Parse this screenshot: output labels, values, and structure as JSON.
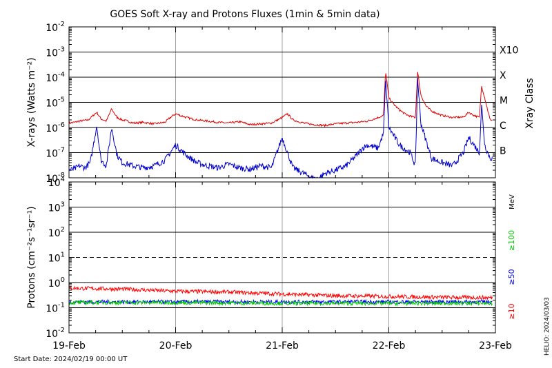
{
  "colors": {
    "xray_long": "#e00000",
    "xray_short": "#0000c8",
    "proton_10": "#ff0000",
    "proton_50": "#0000ff",
    "proton_100": "#00cc00",
    "grid": "#000000",
    "date_grid": "#a0a0a0"
  },
  "chart_data": [
    {
      "type": "line",
      "title": "GOES Soft X-ray and Protons Fluxes   (1min & 5min data)",
      "ylabel": "X-rays (Watts m⁻²)",
      "y_scale": "log",
      "ylim": [
        1e-08,
        0.01
      ],
      "y_ticks": [
        {
          "value": 1e-08,
          "base": "10",
          "exp": "-8"
        },
        {
          "value": 1e-07,
          "base": "10",
          "exp": "-7"
        },
        {
          "value": 1e-06,
          "base": "10",
          "exp": "-6"
        },
        {
          "value": 1e-05,
          "base": "10",
          "exp": "-5"
        },
        {
          "value": 0.0001,
          "base": "10",
          "exp": "-4"
        },
        {
          "value": 0.001,
          "base": "10",
          "exp": "-3"
        },
        {
          "value": 0.01,
          "base": "10",
          "exp": "-2"
        }
      ],
      "xrange": [
        "2024-02-19 00:00",
        "2024-02-23 00:00"
      ],
      "x_ticks": [
        "19-Feb",
        "20-Feb",
        "21-Feb",
        "22-Feb",
        "23-Feb"
      ],
      "right_axis_label": "Xray Class",
      "xray_classes": [
        {
          "label": "B",
          "value": 1e-07
        },
        {
          "label": "C",
          "value": 1e-06
        },
        {
          "label": "M",
          "value": 1e-05
        },
        {
          "label": "X",
          "value": 0.0001
        },
        {
          "label": "X10",
          "value": 0.001
        }
      ],
      "series": [
        {
          "color": "#e00000",
          "x_days": [
            0,
            0.05,
            0.1,
            0.18,
            0.26,
            0.3,
            0.35,
            0.4,
            0.45,
            0.5,
            0.55,
            0.6,
            0.7,
            0.8,
            0.9,
            0.95,
            1.0,
            1.1,
            1.2,
            1.3,
            1.4,
            1.5,
            1.6,
            1.7,
            1.8,
            1.9,
            2.0,
            2.05,
            2.1,
            2.2,
            2.3,
            2.4,
            2.5,
            2.6,
            2.7,
            2.8,
            2.9,
            2.95,
            2.97,
            3.0,
            3.05,
            3.1,
            3.15,
            3.2,
            3.25,
            3.27,
            3.3,
            3.35,
            3.4,
            3.5,
            3.6,
            3.7,
            3.75,
            3.8,
            3.85,
            3.87,
            3.9,
            3.95
          ],
          "values": [
            1.5e-06,
            1.6e-06,
            1.8e-06,
            2e-06,
            4e-06,
            2.2e-06,
            1.8e-06,
            5.5e-06,
            2.5e-06,
            2e-06,
            1.8e-06,
            1.5e-06,
            1.6e-06,
            1.4e-06,
            1.6e-06,
            2.5e-06,
            3.5e-06,
            2.5e-06,
            2e-06,
            1.8e-06,
            1.6e-06,
            1.5e-06,
            1.7e-06,
            1.3e-06,
            1.4e-06,
            1.5e-06,
            2.5e-06,
            3.5e-06,
            2e-06,
            1.5e-06,
            1.3e-06,
            1.2e-06,
            1.4e-06,
            1.5e-06,
            1.6e-06,
            1.8e-06,
            2.5e-06,
            3e-06,
            0.00018,
            1.5e-05,
            8e-06,
            5e-06,
            3.5e-06,
            2.8e-06,
            2.5e-06,
            0.00017,
            2e-05,
            7e-06,
            4.5e-06,
            3e-06,
            2.5e-06,
            2.6e-06,
            4e-06,
            3e-06,
            2.5e-06,
            4.5e-05,
            1.5e-05,
            2e-06
          ]
        },
        {
          "color": "#0000c8",
          "x_days": [
            0,
            0.05,
            0.1,
            0.15,
            0.2,
            0.26,
            0.3,
            0.35,
            0.4,
            0.45,
            0.5,
            0.6,
            0.7,
            0.8,
            0.9,
            0.95,
            1.0,
            1.1,
            1.2,
            1.3,
            1.4,
            1.5,
            1.6,
            1.7,
            1.8,
            1.9,
            2.0,
            2.05,
            2.1,
            2.2,
            2.3,
            2.35,
            2.4,
            2.5,
            2.6,
            2.7,
            2.75,
            2.8,
            2.9,
            2.95,
            2.97,
            3.0,
            3.1,
            3.2,
            3.25,
            3.27,
            3.3,
            3.35,
            3.4,
            3.5,
            3.6,
            3.7,
            3.75,
            3.8,
            3.85,
            3.87,
            3.9,
            3.95
          ],
          "values": [
            2e-08,
            2.2e-08,
            3e-08,
            2.5e-08,
            4e-08,
            1.2e-06,
            5e-08,
            3e-08,
            1e-06,
            8e-08,
            4e-08,
            3e-08,
            2.5e-08,
            3e-08,
            5e-08,
            1e-07,
            2e-07,
            8e-08,
            4e-08,
            3e-08,
            2.5e-08,
            3.5e-08,
            2.5e-08,
            2.2e-08,
            3e-08,
            2.5e-08,
            4e-07,
            1e-07,
            2.5e-08,
            1.5e-08,
            9e-09,
            1e-08,
            1.5e-08,
            2e-08,
            3e-08,
            8e-08,
            1.5e-07,
            2e-07,
            1.5e-07,
            6e-07,
            8e-05,
            1e-06,
            2e-07,
            1e-07,
            3e-08,
            0.0001,
            1.5e-06,
            3e-07,
            6e-08,
            4e-08,
            3e-08,
            1e-07,
            4e-07,
            2e-07,
            1e-07,
            8e-06,
            2e-07,
            6e-08
          ]
        }
      ]
    },
    {
      "type": "line",
      "ylabel": "Protons (cm⁻²s⁻¹sr⁻¹)",
      "y_scale": "log",
      "ylim": [
        0.01,
        10000.0
      ],
      "y_ticks": [
        {
          "value": 0.01,
          "base": "10",
          "exp": "-2"
        },
        {
          "value": 0.1,
          "base": "10",
          "exp": "-1"
        },
        {
          "value": 1.0,
          "base": "10",
          "exp": "0"
        },
        {
          "value": 10.0,
          "base": "10",
          "exp": "1"
        },
        {
          "value": 100.0,
          "base": "10",
          "exp": "2"
        },
        {
          "value": 1000.0,
          "base": "10",
          "exp": "3"
        },
        {
          "value": 10000.0,
          "base": "10",
          "exp": "4"
        }
      ],
      "threshold_line": 10,
      "xrange": [
        "2024-02-19 00:00",
        "2024-02-23 00:00"
      ],
      "x_ticks": [
        "19-Feb",
        "20-Feb",
        "21-Feb",
        "22-Feb",
        "23-Feb"
      ],
      "right_axis_label": "MeV",
      "series": [
        {
          "name": "≥10",
          "color": "#ff0000",
          "x_days": [
            0,
            0.5,
            1.0,
            1.5,
            2.0,
            2.5,
            3.0,
            3.5,
            3.95
          ],
          "values": [
            0.6,
            0.55,
            0.45,
            0.42,
            0.35,
            0.3,
            0.28,
            0.26,
            0.25
          ]
        },
        {
          "name": "≥50",
          "color": "#0000ff",
          "x_days": [
            0,
            1.0,
            2.0,
            3.0,
            3.95
          ],
          "values": [
            0.17,
            0.17,
            0.17,
            0.17,
            0.17
          ]
        },
        {
          "name": "≥100",
          "color": "#00cc00",
          "x_days": [
            0,
            1.0,
            2.0,
            3.0,
            3.95
          ],
          "values": [
            0.16,
            0.16,
            0.15,
            0.15,
            0.15
          ]
        }
      ]
    }
  ],
  "footer": {
    "start_date": "Start Date: 2024/02/19 00:00 UT",
    "helio": "HELIO: 2024/03/03"
  }
}
